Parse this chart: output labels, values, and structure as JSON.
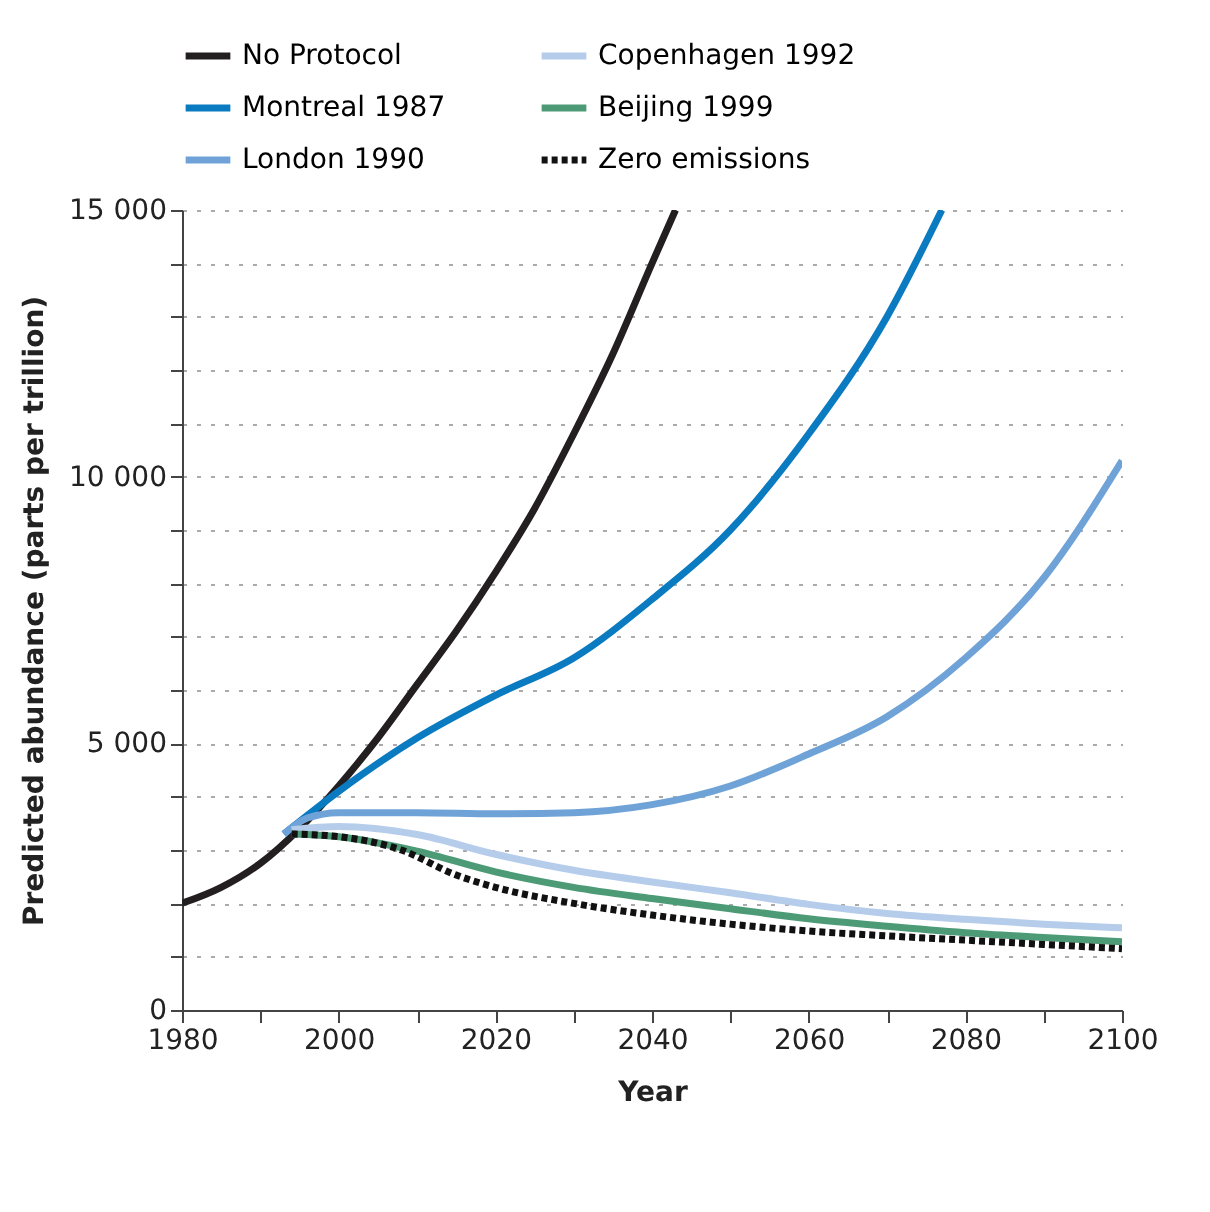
{
  "chart_data": {
    "type": "line",
    "xlabel": "Year",
    "ylabel": "Predicted abundance (parts per trillion)",
    "xlim": [
      1980,
      2100
    ],
    "ylim": [
      0,
      15000
    ],
    "xticks": [
      1980,
      {
        "value": 1990,
        "label": null
      },
      2000,
      {
        "value": 2010,
        "label": null
      },
      2020,
      {
        "value": 2030,
        "label": null
      },
      2040,
      {
        "value": 2050,
        "label": null
      },
      2060,
      {
        "value": 2070,
        "label": null
      },
      2080,
      {
        "value": 2090,
        "label": null
      },
      2100
    ],
    "yticks": [
      {
        "value": 0,
        "label": "0"
      },
      {
        "value": 1000,
        "label": null
      },
      {
        "value": 2000,
        "label": null
      },
      {
        "value": 3000,
        "label": null
      },
      {
        "value": 4000,
        "label": null
      },
      {
        "value": 5000,
        "label": "5 000"
      },
      {
        "value": 6000,
        "label": null
      },
      {
        "value": 7000,
        "label": null
      },
      {
        "value": 8000,
        "label": null
      },
      {
        "value": 9000,
        "label": null
      },
      {
        "value": 10000,
        "label": "10 000"
      },
      {
        "value": 11000,
        "label": null
      },
      {
        "value": 12000,
        "label": null
      },
      {
        "value": 13000,
        "label": null
      },
      {
        "value": 14000,
        "label": null
      },
      {
        "value": 15000,
        "label": "15 000"
      }
    ],
    "grid": "y",
    "legend": "top",
    "line_style": "solid",
    "series": [
      {
        "name": "No Protocol",
        "color": "#231f20",
        "x": [
          1980,
          1985,
          1990,
          1995,
          2000,
          2005,
          2010,
          2015,
          2020,
          2025,
          2030,
          2035,
          2040,
          2043
        ],
        "values": [
          2000,
          2300,
          2750,
          3400,
          4200,
          5100,
          6100,
          7100,
          8200,
          9400,
          10800,
          12300,
          14000,
          15000
        ]
      },
      {
        "name": "Montreal 1987",
        "color": "#0a7bc1",
        "x": [
          1993,
          2000,
          2010,
          2020,
          2030,
          2040,
          2050,
          2060,
          2070,
          2077
        ],
        "values": [
          3300,
          4100,
          5100,
          5900,
          6600,
          7700,
          9000,
          10800,
          13000,
          15000
        ]
      },
      {
        "name": "London 1990",
        "color": "#6fa3d8",
        "x": [
          1993,
          1996,
          2000,
          2010,
          2020,
          2030,
          2040,
          2050,
          2060,
          2070,
          2080,
          2090,
          2100
        ],
        "values": [
          3300,
          3600,
          3700,
          3700,
          3680,
          3700,
          3850,
          4200,
          4800,
          5500,
          6600,
          8100,
          10300
        ]
      },
      {
        "name": "Copenhagen 1992",
        "color": "#b5cdeb",
        "x": [
          1994,
          2000,
          2010,
          2020,
          2030,
          2040,
          2050,
          2060,
          2070,
          2080,
          2090,
          2100
        ],
        "values": [
          3380,
          3440,
          3290,
          2920,
          2620,
          2400,
          2200,
          1980,
          1810,
          1700,
          1610,
          1540
        ]
      },
      {
        "name": "Beijing 1999",
        "color": "#4d9b76",
        "x": [
          1994,
          2000,
          2010,
          2020,
          2030,
          2040,
          2050,
          2060,
          2070,
          2080,
          2090,
          2100
        ],
        "values": [
          3300,
          3250,
          2980,
          2590,
          2300,
          2090,
          1900,
          1710,
          1570,
          1450,
          1360,
          1280
        ]
      },
      {
        "name": "Zero emissions",
        "color": "#111111",
        "line_style": "dotted",
        "x": [
          1994,
          2000,
          2008,
          2015,
          2020,
          2030,
          2040,
          2050,
          2060,
          2070,
          2080,
          2090,
          2100
        ],
        "values": [
          3300,
          3250,
          3000,
          2530,
          2300,
          2000,
          1780,
          1610,
          1480,
          1390,
          1310,
          1230,
          1150
        ]
      }
    ]
  }
}
